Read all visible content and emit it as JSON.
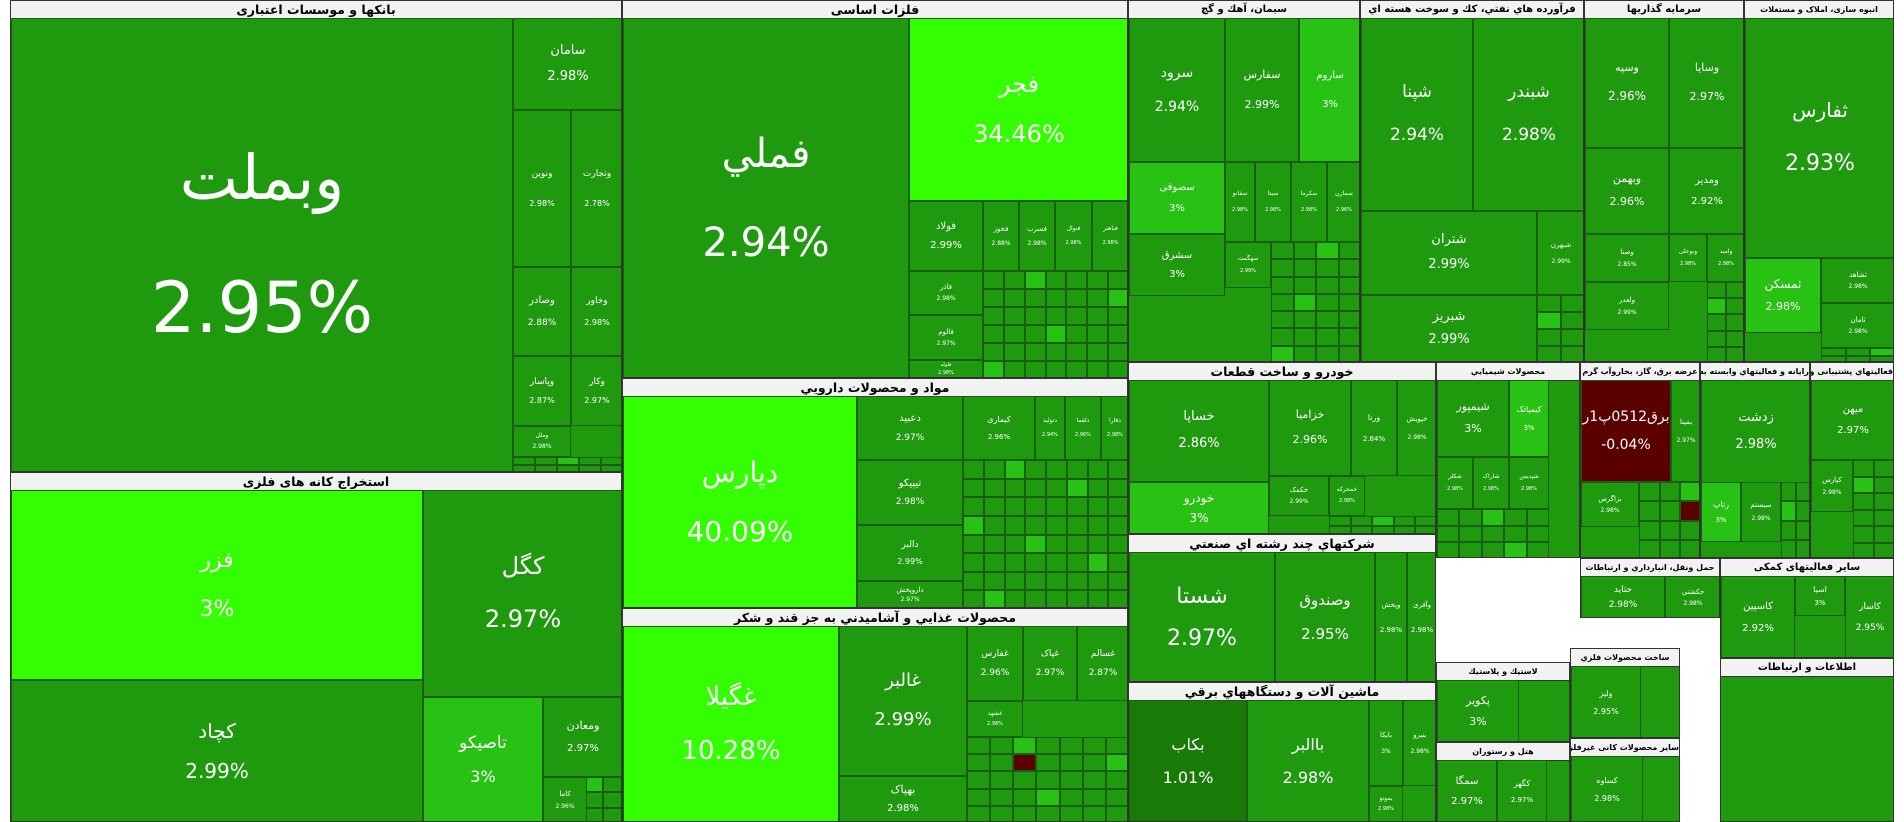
{
  "colors": {
    "dark": "#1f9a0f",
    "mid": "#27c214",
    "bright": "#33ff00",
    "deep_red": "#5a0000",
    "darkgreen": "#1a7a08"
  },
  "sectors": [
    {
      "name": "بانکها و موسسات اعتباری",
      "tiles": [
        {
          "symbol": "وبملت",
          "change": "2.95%"
        },
        {
          "symbol": "سامان",
          "change": "2.98%"
        },
        {
          "symbol": "ونوین",
          "change": "2.98%"
        },
        {
          "symbol": "وتجارت",
          "change": "2.78%"
        },
        {
          "symbol": "وصادر",
          "change": "2.88%"
        },
        {
          "symbol": "وخاور",
          "change": "2.98%"
        },
        {
          "symbol": "وپاسار",
          "change": "2.87%"
        },
        {
          "symbol": "وکار",
          "change": "2.97%"
        },
        {
          "symbol": "وملل",
          "change": "2.98%"
        }
      ]
    },
    {
      "name": "استخراج کانه های فلزی",
      "tiles": [
        {
          "symbol": "فزر",
          "change": "3%"
        },
        {
          "symbol": "کگل",
          "change": "2.97%"
        },
        {
          "symbol": "کچاد",
          "change": "2.99%"
        },
        {
          "symbol": "تاصیکو",
          "change": "3%"
        },
        {
          "symbol": "ومعادن",
          "change": "2.97%"
        },
        {
          "symbol": "کاما",
          "change": "2.96%"
        }
      ]
    },
    {
      "name": "فلزات اساسی",
      "tiles": [
        {
          "symbol": "فملي",
          "change": "2.94%"
        },
        {
          "symbol": "فجر",
          "change": "34.46%"
        },
        {
          "symbol": "فولاد",
          "change": "2.99%"
        },
        {
          "symbol": "فخوز",
          "change": "2.88%"
        },
        {
          "symbol": "فسرب",
          "change": "2.98%"
        },
        {
          "symbol": "فنوال",
          "change": "2.98%"
        },
        {
          "symbol": "فباهنر",
          "change": "2.98%"
        },
        {
          "symbol": "فاذر",
          "change": "2.98%"
        },
        {
          "symbol": "فالوم",
          "change": "2.97%"
        },
        {
          "symbol": "فلوله",
          "change": "2.98%"
        }
      ]
    },
    {
      "name": "مواد و محصولات دارويي",
      "tiles": [
        {
          "symbol": "دپارس",
          "change": "40.09%"
        },
        {
          "symbol": "دعبيد",
          "change": "2.97%"
        },
        {
          "symbol": "كيمارى",
          "change": "2.96%"
        },
        {
          "symbol": "دتولید",
          "change": "2.94%"
        },
        {
          "symbol": "دلقما",
          "change": "2.96%"
        },
        {
          "symbol": "دفارا",
          "change": "2.98%"
        },
        {
          "symbol": "تیپیکو",
          "change": "2.98%"
        },
        {
          "symbol": "دالبر",
          "change": "2.99%"
        },
        {
          "symbol": "داروپخش",
          "change": "2.97%"
        }
      ]
    },
    {
      "name": "محصولات غذايي و آشاميدني به جز قند و شكر",
      "tiles": [
        {
          "symbol": "غگیلا",
          "change": "10.28%"
        },
        {
          "symbol": "غالبر",
          "change": "2.99%"
        },
        {
          "symbol": "غفارس",
          "change": "2.96%"
        },
        {
          "symbol": "غپاک",
          "change": "2.97%"
        },
        {
          "symbol": "غسالم",
          "change": "2.87%"
        },
        {
          "symbol": "بهپاک",
          "change": "2.98%"
        },
        {
          "symbol": "غشهد",
          "change": "2.98%"
        }
      ]
    },
    {
      "name": "سيمان، آهك و گچ",
      "tiles": [
        {
          "symbol": "سرود",
          "change": "2.94%"
        },
        {
          "symbol": "سفارس",
          "change": "2.99%"
        },
        {
          "symbol": "ساروم",
          "change": "3%"
        },
        {
          "symbol": "سصوفی",
          "change": "3%"
        },
        {
          "symbol": "سشرق",
          "change": "3%"
        },
        {
          "symbol": "سفانو",
          "change": "2.98%"
        },
        {
          "symbol": "سیتا",
          "change": "2.98%"
        },
        {
          "symbol": "سکرما",
          "change": "2.98%"
        },
        {
          "symbol": "سمازن",
          "change": "2.96%"
        },
        {
          "symbol": "سهگمت",
          "change": "2.99%"
        }
      ]
    },
    {
      "name": "فرآورده هاي نفتي، كك و سوخت هسته اي",
      "tiles": [
        {
          "symbol": "شپنا",
          "change": "2.94%"
        },
        {
          "symbol": "شبندر",
          "change": "2.98%"
        },
        {
          "symbol": "شتران",
          "change": "2.99%"
        },
        {
          "symbol": "شبهرن",
          "change": "2.99%"
        },
        {
          "symbol": "شبریز",
          "change": "2.99%"
        }
      ]
    },
    {
      "name": "سرمايه گذاريها",
      "tiles": [
        {
          "symbol": "وسپه",
          "change": "2.96%"
        },
        {
          "symbol": "وسایا",
          "change": "2.97%"
        },
        {
          "symbol": "وبهمن",
          "change": "2.96%"
        },
        {
          "symbol": "ومدیر",
          "change": "2.92%"
        },
        {
          "symbol": "وصنا",
          "change": "2.85%"
        },
        {
          "symbol": "ولغدر",
          "change": "2.99%"
        },
        {
          "symbol": "وبوعلی",
          "change": "2.98%"
        },
        {
          "symbol": "وامید",
          "change": "2.98%"
        }
      ]
    },
    {
      "name": "انبوه سازی، املاک و مستغلات",
      "tiles": [
        {
          "symbol": "ثفارس",
          "change": "2.93%"
        },
        {
          "symbol": "ثمسکن",
          "change": "2.98%"
        },
        {
          "symbol": "ثشاهد",
          "change": "2.98%"
        },
        {
          "symbol": "ثامان",
          "change": "2.98%"
        }
      ]
    },
    {
      "name": "خودرو و ساخت قطعات",
      "tiles": [
        {
          "symbol": "خساپا",
          "change": "2.86%"
        },
        {
          "symbol": "خزامیا",
          "change": "2.96%"
        },
        {
          "symbol": "ورنا",
          "change": "2.84%"
        },
        {
          "symbol": "خپویش",
          "change": "2.98%"
        },
        {
          "symbol": "خودرو",
          "change": "3%"
        },
        {
          "symbol": "خکمک",
          "change": "2.99%"
        },
        {
          "symbol": "خمحرکه",
          "change": "2.98%"
        }
      ]
    },
    {
      "name": "شرکتهاي چند رشته اي صنعتي",
      "tiles": [
        {
          "symbol": "شستا",
          "change": "2.97%"
        },
        {
          "symbol": "وصندوق",
          "change": "2.95%"
        },
        {
          "symbol": "وپخش",
          "change": "2.98%"
        },
        {
          "symbol": "وآفری",
          "change": "2.98%"
        }
      ]
    },
    {
      "name": "ماشين آلات و دستگاههاي برقي",
      "tiles": [
        {
          "symbol": "بکاب",
          "change": "1.01%"
        },
        {
          "symbol": "باالبر",
          "change": "2.98%"
        },
        {
          "symbol": "بایکا",
          "change": "3%"
        },
        {
          "symbol": "بنیرو",
          "change": "2.98%"
        },
        {
          "symbol": "بموتو",
          "change": "2.98%"
        }
      ]
    },
    {
      "name": "محصولات شيميايي",
      "tiles": [
        {
          "symbol": "شیمپور",
          "change": "3%"
        },
        {
          "symbol": "کیمیاتک",
          "change": "3%"
        },
        {
          "symbol": "شکلر",
          "change": "2.98%"
        },
        {
          "symbol": "شاراک",
          "change": "2.98%"
        },
        {
          "symbol": "شپدیس",
          "change": "2.98%"
        }
      ]
    },
    {
      "name": "عرضه برق، گاز، بخاروآب گرم",
      "tiles": [
        {
          "symbol": "برق0512پ1ر",
          "change": "-0.04%"
        },
        {
          "symbol": "بمپنا",
          "change": "2.97%"
        },
        {
          "symbol": "بزاگرس",
          "change": "2.98%"
        }
      ]
    },
    {
      "name": "رايانه و فعاليتهاي وابسته به آن",
      "tiles": [
        {
          "symbol": "زدشت",
          "change": "2.98%"
        },
        {
          "symbol": "رتاپ",
          "change": "3%"
        },
        {
          "symbol": "سیستم",
          "change": "2.98%"
        }
      ]
    },
    {
      "name": "فعاليتهاي پشتیبانی و کمکی حمل و نقل",
      "tiles": [
        {
          "symbol": "میهن",
          "change": "2.97%"
        },
        {
          "symbol": "کپارس",
          "change": "2.98%"
        }
      ]
    },
    {
      "name": "حمل ونقل، انبارداري و ارتباطات",
      "tiles": [
        {
          "symbol": "حتاید",
          "change": "2.98%"
        },
        {
          "symbol": "حکشتی",
          "change": "2.98%"
        }
      ]
    },
    {
      "name": "سایر فعالیتهای کمکی",
      "tiles": [
        {
          "symbol": "کاسپین",
          "change": "2.92%"
        },
        {
          "symbol": "اسیا",
          "change": "3%"
        },
        {
          "symbol": "کاسار",
          "change": "2.95%"
        }
      ]
    },
    {
      "name": "ساخت محصولات فلزي",
      "tiles": [
        {
          "symbol": "ولیز",
          "change": "2.95%"
        }
      ]
    },
    {
      "name": "لاستيك و پلاستيك",
      "tiles": [
        {
          "symbol": "پکویر",
          "change": "3%"
        }
      ]
    },
    {
      "name": "سایر محصولات کانی غیرفلزی",
      "tiles": [
        {
          "symbol": "کساوه",
          "change": "2.98%"
        }
      ]
    },
    {
      "name": "هتل و رستوران",
      "tiles": [
        {
          "symbol": "سمگا",
          "change": "2.97%"
        },
        {
          "symbol": "کگهر",
          "change": "2.97%"
        }
      ]
    },
    {
      "name": "اطلاعات و ارتباطات",
      "tiles": []
    }
  ],
  "chart_data": {
    "type": "treemap",
    "title": "",
    "groups": [
      {
        "name": "بانکها و موسسات اعتباری",
        "items": [
          [
            "وبملت",
            2.95
          ],
          [
            "سامان",
            2.98
          ],
          [
            "ونوین",
            2.98
          ],
          [
            "وتجارت",
            2.78
          ],
          [
            "وصادر",
            2.88
          ],
          [
            "وخاور",
            2.98
          ],
          [
            "وپاسار",
            2.87
          ],
          [
            "وکار",
            2.97
          ]
        ]
      },
      {
        "name": "استخراج کانه های فلزی",
        "items": [
          [
            "فزر",
            3.0
          ],
          [
            "کگل",
            2.97
          ],
          [
            "کچاد",
            2.99
          ],
          [
            "تاصیکو",
            3.0
          ],
          [
            "ومعادن",
            2.97
          ]
        ]
      },
      {
        "name": "فلزات اساسی",
        "items": [
          [
            "فملي",
            2.94
          ],
          [
            "فجر",
            34.46
          ],
          [
            "فولاد",
            2.99
          ]
        ]
      },
      {
        "name": "مواد و محصولات دارويي",
        "items": [
          [
            "دپارس",
            40.09
          ],
          [
            "دعبيد",
            2.97
          ],
          [
            "تیپیکو",
            2.98
          ],
          [
            "دالبر",
            2.99
          ]
        ]
      },
      {
        "name": "محصولات غذايي و آشاميدني به جز قند و شكر",
        "items": [
          [
            "غگیلا",
            10.28
          ],
          [
            "غالبر",
            2.99
          ],
          [
            "غفارس",
            2.96
          ],
          [
            "غپاک",
            2.97
          ],
          [
            "غسالم",
            2.87
          ]
        ]
      },
      {
        "name": "سيمان، آهك و گچ",
        "items": [
          [
            "سرود",
            2.94
          ],
          [
            "سفارس",
            2.99
          ],
          [
            "ساروم",
            3.0
          ],
          [
            "سصوفی",
            3.0
          ],
          [
            "سشرق",
            3.0
          ]
        ]
      },
      {
        "name": "فرآورده هاي نفتي، كك و سوخت هسته اي",
        "items": [
          [
            "شپنا",
            2.94
          ],
          [
            "شبندر",
            2.98
          ],
          [
            "شتران",
            2.99
          ],
          [
            "شبریز",
            2.99
          ]
        ]
      },
      {
        "name": "سرمايه گذاريها",
        "items": [
          [
            "وسپه",
            2.96
          ],
          [
            "وسایا",
            2.97
          ],
          [
            "وبهمن",
            2.96
          ],
          [
            "ومدیر",
            2.92
          ]
        ]
      },
      {
        "name": "انبوه سازی، املاک و مستغلات",
        "items": [
          [
            "ثفارس",
            2.93
          ],
          [
            "ثمسکن",
            2.98
          ]
        ]
      },
      {
        "name": "خودرو و ساخت قطعات",
        "items": [
          [
            "خساپا",
            2.86
          ],
          [
            "خزامیا",
            2.96
          ],
          [
            "ورنا",
            2.84
          ],
          [
            "خودرو",
            3.0
          ]
        ]
      },
      {
        "name": "شرکتهاي چند رشته اي صنعتي",
        "items": [
          [
            "شستا",
            2.97
          ],
          [
            "وصندوق",
            2.95
          ]
        ]
      },
      {
        "name": "ماشين آلات و دستگاههاي برقي",
        "items": [
          [
            "بکاب",
            1.01
          ],
          [
            "باالبر",
            2.98
          ]
        ]
      },
      {
        "name": "محصولات شيميايي",
        "items": [
          [
            "شیمپور",
            3.0
          ],
          [
            "کیمیاتک",
            3.0
          ]
        ]
      },
      {
        "name": "عرضه برق، گاز، بخاروآب گرم",
        "items": [
          [
            "برق0512پ1ر",
            -0.04
          ]
        ]
      },
      {
        "name": "رايانه و فعاليتهاي وابسته به آن",
        "items": [
          [
            "زدشت",
            2.98
          ],
          [
            "رتاپ",
            3.0
          ]
        ]
      },
      {
        "name": "فعاليتهاي پشتیبانی و کمکی حمل و نقل",
        "items": [
          [
            "میهن",
            2.97
          ]
        ]
      },
      {
        "name": "سایر فعالیتهای کمکی",
        "items": [
          [
            "کاسپین",
            2.92
          ],
          [
            "کاسار",
            2.95
          ]
        ]
      },
      {
        "name": "لاستيك و پلاستيك",
        "items": [
          [
            "پکویر",
            3.0
          ]
        ]
      },
      {
        "name": "هتل و رستوران",
        "items": [
          [
            "سمگا",
            2.97
          ]
        ]
      },
      {
        "name": "حمل ونقل، انبارداري و ارتباطات",
        "items": [
          [
            "حتاید",
            2.98
          ]
        ]
      }
    ]
  }
}
